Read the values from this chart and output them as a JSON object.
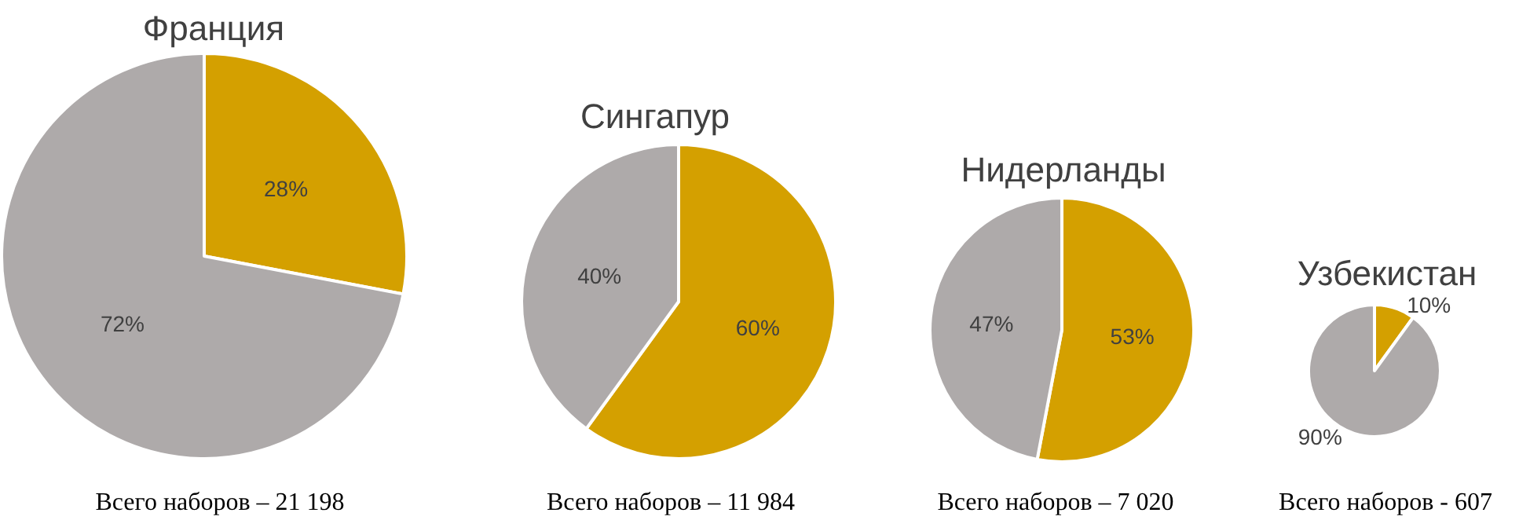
{
  "chart_data": [
    {
      "type": "pie",
      "title": "Франция",
      "categories": [
        null,
        null
      ],
      "values": [
        28,
        72
      ],
      "colors": [
        "#d4a000",
        "#aeaaaa"
      ],
      "value_labels": [
        "28%",
        "72%"
      ],
      "annotations": [
        "Всего наборов – 21 198"
      ]
    },
    {
      "type": "pie",
      "title": "Сингапур",
      "categories": [
        null,
        null
      ],
      "values": [
        60,
        40
      ],
      "colors": [
        "#d4a000",
        "#aeaaaa"
      ],
      "value_labels": [
        "60%",
        "40%"
      ],
      "annotations": [
        "Всего наборов – 11 984"
      ]
    },
    {
      "type": "pie",
      "title": "Нидерланды",
      "categories": [
        null,
        null
      ],
      "values": [
        53,
        47
      ],
      "colors": [
        "#d4a000",
        "#aeaaaa"
      ],
      "value_labels": [
        "53%",
        "47%"
      ],
      "annotations": [
        "Всего наборов – 7 020"
      ]
    },
    {
      "type": "pie",
      "title": "Узбекистан",
      "categories": [
        null,
        null
      ],
      "values": [
        10,
        90
      ],
      "colors": [
        "#d4a000",
        "#aeaaaa"
      ],
      "value_labels": [
        "10%",
        "90%"
      ],
      "annotations": [
        "Всего наборов - 607"
      ]
    }
  ]
}
